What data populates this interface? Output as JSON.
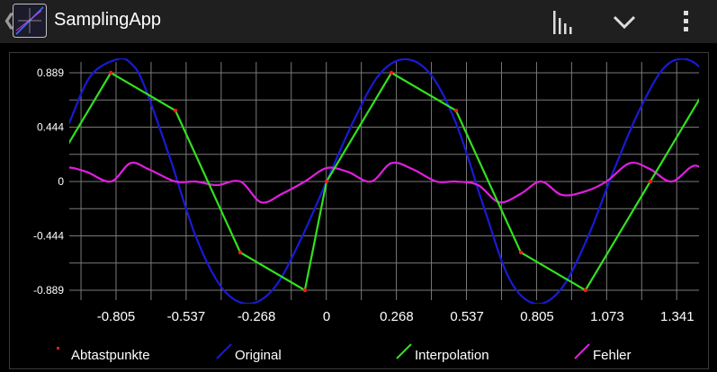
{
  "app": {
    "title": "SamplingApp",
    "actions": [
      "chart-bars-icon",
      "chevron-down-icon",
      "overflow-menu-icon"
    ]
  },
  "colors": {
    "background": "#000000",
    "actionbar": "#1f1f1f",
    "grid": "#7a7a7a",
    "abtastpunkte": "#ff1a1a",
    "original": "#1a1ad6",
    "interpolation": "#33e01f",
    "fehler": "#e01fe0"
  },
  "chart_data": {
    "type": "line",
    "title": "",
    "xlabel": "",
    "ylabel": "",
    "xlim": [
      -1.073,
      1.55
    ],
    "ylim": [
      -1.05,
      1.05
    ],
    "x_ticks": [
      -0.805,
      -0.537,
      -0.268,
      0,
      0.268,
      0.537,
      0.805,
      1.073,
      1.341
    ],
    "x_tick_labels": [
      "-0.805",
      "-0.537",
      "-0.268",
      "0",
      "0.268",
      "0.537",
      "0.805",
      "1.073",
      "1.341"
    ],
    "y_ticks": [
      -0.889,
      -0.444,
      0,
      0.444,
      0.889
    ],
    "y_tick_labels": [
      "-0.889",
      "-0.444",
      "0",
      "0.444",
      "0.889"
    ],
    "grid": true,
    "legend_position": "bottom",
    "legend": [
      "Abtastpunkte",
      "Original",
      "Interpolation",
      "Fehler"
    ],
    "series": [
      {
        "name": "Abtastpunkte",
        "x": [
          -1.073,
          -0.825,
          -0.578,
          -0.33,
          -0.083,
          0.0,
          0.248,
          0.495,
          0.743,
          0.99,
          1.238,
          1.486,
          1.55
        ],
        "y": [
          0.0,
          0.889,
          0.58,
          -0.58,
          -0.889,
          0.0,
          0.889,
          0.58,
          -0.58,
          -0.889,
          0.0,
          0.889,
          0.58
        ]
      },
      {
        "name": "Original",
        "x": [
          -1.073,
          -0.98,
          -0.9,
          -0.8,
          -0.75,
          -0.7,
          -0.6,
          -0.5,
          -0.4,
          -0.3,
          -0.2,
          -0.1,
          0,
          0.1,
          0.2,
          0.3,
          0.4,
          0.5,
          0.6,
          0.7,
          0.8,
          0.9,
          1.0,
          1.1,
          1.2,
          1.3,
          1.4,
          1.5,
          1.55
        ],
        "y": [
          0.0,
          0.5,
          0.87,
          1.0,
          0.97,
          0.8,
          0.2,
          -0.45,
          -0.87,
          -1.0,
          -0.87,
          -0.48,
          0.0,
          0.48,
          0.87,
          1.0,
          0.87,
          0.45,
          -0.2,
          -0.8,
          -1.0,
          -0.87,
          -0.45,
          0.1,
          0.6,
          0.95,
          0.98,
          0.72,
          0.45
        ]
      },
      {
        "name": "Interpolation",
        "x": [
          -1.073,
          -0.825,
          -0.578,
          -0.33,
          -0.083,
          0.0,
          0.248,
          0.495,
          0.743,
          0.99,
          1.238,
          1.486,
          1.55
        ],
        "y": [
          0.0,
          0.889,
          0.58,
          -0.58,
          -0.889,
          0.0,
          0.889,
          0.58,
          -0.58,
          -0.889,
          0.0,
          0.889,
          0.58
        ]
      },
      {
        "name": "Fehler",
        "x": [
          -1.073,
          -1.0,
          -0.92,
          -0.825,
          -0.75,
          -0.68,
          -0.578,
          -0.5,
          -0.42,
          -0.33,
          -0.25,
          -0.17,
          -0.083,
          0.0,
          0.08,
          0.17,
          0.248,
          0.33,
          0.42,
          0.495,
          0.58,
          0.66,
          0.743,
          0.82,
          0.9,
          0.99,
          1.07,
          1.16,
          1.238,
          1.32,
          1.41,
          1.486,
          1.55
        ],
        "y": [
          0.0,
          0.11,
          0.08,
          0.0,
          0.15,
          0.1,
          0.0,
          0.0,
          -0.03,
          0.0,
          -0.17,
          -0.1,
          0.0,
          0.11,
          0.08,
          0.0,
          0.15,
          0.1,
          0.0,
          0.0,
          -0.03,
          -0.17,
          -0.1,
          0.0,
          -0.11,
          -0.08,
          0.0,
          0.15,
          0.1,
          0.0,
          0.13,
          0.0,
          0.0
        ]
      }
    ]
  }
}
